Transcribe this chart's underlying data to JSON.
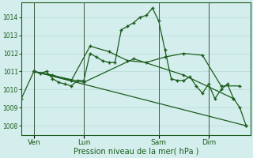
{
  "xlabel": "Pression niveau de la mer( hPa )",
  "bg_color": "#d4eeed",
  "grid_color": "#b8d8d4",
  "line_color": "#1a5c1a",
  "ylim": [
    1007.5,
    1014.8
  ],
  "yticks": [
    1008,
    1009,
    1010,
    1011,
    1012,
    1013,
    1014
  ],
  "xlim": [
    0,
    220
  ],
  "xtick_labels": [
    "Ven",
    "Lun",
    "Sam",
    "Dim"
  ],
  "xtick_positions": [
    12,
    60,
    132,
    180
  ],
  "vlines": [
    12,
    60,
    132,
    180
  ],
  "series1_x": [
    0,
    12,
    18,
    24,
    30,
    36,
    42,
    48,
    54,
    60,
    66,
    72,
    78,
    84,
    90,
    96,
    102,
    108,
    114,
    120,
    126,
    132,
    138,
    144,
    150,
    156,
    162,
    168,
    174,
    180,
    186,
    192,
    198,
    204,
    210,
    216
  ],
  "series1_y": [
    1009.5,
    1011.0,
    1010.9,
    1011.0,
    1010.6,
    1010.4,
    1010.3,
    1010.2,
    1010.5,
    1010.5,
    1012.0,
    1011.8,
    1011.6,
    1011.5,
    1011.5,
    1013.3,
    1013.5,
    1013.7,
    1014.0,
    1014.1,
    1014.5,
    1013.8,
    1012.2,
    1010.6,
    1010.5,
    1010.5,
    1010.7,
    1010.2,
    1009.8,
    1010.3,
    1009.5,
    1010.0,
    1010.3,
    1009.5,
    1009.0,
    1008.0
  ],
  "series2_x": [
    12,
    30,
    48,
    66,
    84,
    102,
    120,
    138,
    156,
    174,
    192,
    210
  ],
  "series2_y": [
    1011.0,
    1010.8,
    1010.5,
    1012.4,
    1012.1,
    1011.6,
    1011.5,
    1011.8,
    1012.0,
    1011.9,
    1010.2,
    1010.2
  ],
  "series3_x": [
    12,
    60,
    108,
    156,
    204
  ],
  "series3_y": [
    1011.0,
    1010.4,
    1011.7,
    1010.8,
    1009.5
  ],
  "series4_x": [
    12,
    216
  ],
  "series4_y": [
    1011.0,
    1008.0
  ]
}
